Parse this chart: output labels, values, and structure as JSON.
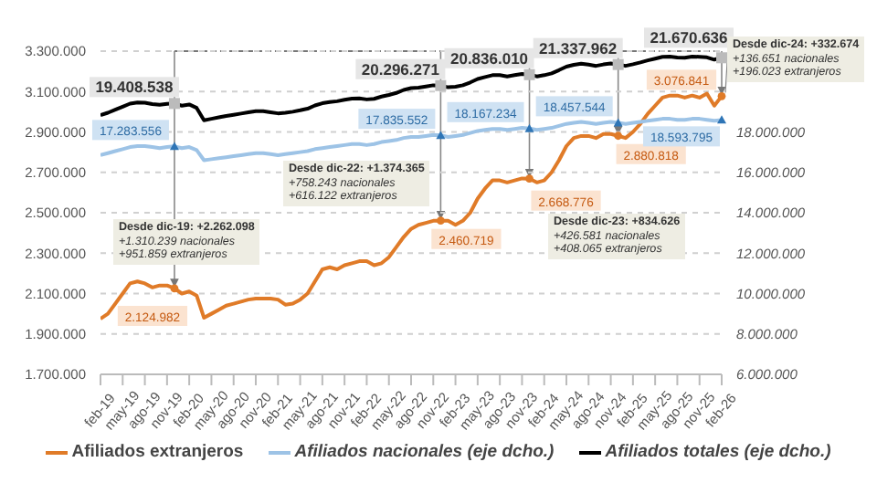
{
  "chart_data": {
    "type": "line",
    "categories": [
      "feb-19",
      null,
      null,
      "may-19",
      null,
      null,
      "ago-19",
      null,
      null,
      "nov-19",
      null,
      null,
      "feb-20",
      null,
      null,
      "may-20",
      null,
      null,
      "ago-20",
      null,
      null,
      "nov-20",
      null,
      null,
      "feb-21",
      null,
      null,
      "may-21",
      null,
      null,
      "ago-21",
      null,
      null,
      "nov-21",
      null,
      null,
      "feb-22",
      null,
      null,
      "may-22",
      null,
      null,
      "ago-22",
      null,
      null,
      "nov-22",
      null,
      null,
      "feb-23",
      null,
      null,
      "may-23",
      null,
      null,
      "ago-23",
      null,
      null,
      "nov-23",
      null,
      null,
      "feb-24",
      null,
      null,
      "may-24",
      null,
      null,
      "ago-24",
      null,
      null,
      "nov-24",
      null,
      null,
      "feb-25",
      null,
      null,
      "may-25",
      null,
      null,
      "ago-25",
      null,
      null,
      "nov-25",
      null,
      null,
      "feb-26"
    ],
    "series": [
      {
        "name": "Afiliados extranjeros",
        "color": "#e07b28",
        "values": [
          1975000,
          2000000,
          2050000,
          2100000,
          2150000,
          2160000,
          2150000,
          2130000,
          2140000,
          2140000,
          2124982,
          2100000,
          2110000,
          2090000,
          1980000,
          2000000,
          2020000,
          2040000,
          2050000,
          2060000,
          2070000,
          2075000,
          2075000,
          2075000,
          2070000,
          2045000,
          2050000,
          2070000,
          2100000,
          2160000,
          2220000,
          2230000,
          2220000,
          2240000,
          2250000,
          2260000,
          2260000,
          2240000,
          2250000,
          2280000,
          2330000,
          2380000,
          2420000,
          2440000,
          2450000,
          2460000,
          2460719,
          2460000,
          2440000,
          2460000,
          2500000,
          2570000,
          2620000,
          2660000,
          2660000,
          2650000,
          2660000,
          2670000,
          2668776,
          2650000,
          2660000,
          2700000,
          2760000,
          2830000,
          2870000,
          2880000,
          2880000,
          2870000,
          2890000,
          2890000,
          2880818,
          2870000,
          2900000,
          2940000,
          2990000,
          3030000,
          3070000,
          3080000,
          3080000,
          3070000,
          3080000,
          3070000,
          3090000,
          3030000,
          3076841
        ],
        "value_labels": [
          null,
          null,
          null,
          null,
          null,
          null,
          null,
          null,
          null,
          null,
          "2.124.982",
          null,
          null,
          null,
          null,
          null,
          null,
          null,
          null,
          null,
          null,
          null,
          null,
          null,
          null,
          null,
          null,
          null,
          null,
          null,
          null,
          null,
          null,
          null,
          null,
          null,
          null,
          null,
          null,
          null,
          null,
          null,
          null,
          null,
          null,
          null,
          "2.460.719",
          null,
          null,
          null,
          null,
          null,
          null,
          null,
          null,
          null,
          null,
          null,
          "2.668.776",
          null,
          null,
          null,
          null,
          null,
          null,
          null,
          null,
          null,
          null,
          null,
          "2.880.818",
          null,
          null,
          null,
          null,
          null,
          null,
          null,
          null,
          null,
          null,
          null,
          null,
          null,
          "3.076.841"
        ]
      },
      {
        "name": "Afiliados nacionales (eje dcho.)",
        "color": "#9dc3e6",
        "axis": "y2",
        "values": [
          16850000,
          16950000,
          17050000,
          17150000,
          17250000,
          17300000,
          17300000,
          17250000,
          17200000,
          17250000,
          17283556,
          17200000,
          17250000,
          17100000,
          16600000,
          16650000,
          16700000,
          16750000,
          16800000,
          16850000,
          16900000,
          16950000,
          16950000,
          16900000,
          16850000,
          16900000,
          16950000,
          17000000,
          17050000,
          17150000,
          17200000,
          17250000,
          17300000,
          17350000,
          17400000,
          17400000,
          17350000,
          17400000,
          17500000,
          17550000,
          17600000,
          17700000,
          17750000,
          17750000,
          17800000,
          17850000,
          17835552,
          17750000,
          17800000,
          17850000,
          17950000,
          18050000,
          18100000,
          18150000,
          18150000,
          18100000,
          18150000,
          18200000,
          18167234,
          18100000,
          18150000,
          18200000,
          18300000,
          18400000,
          18450000,
          18500000,
          18450000,
          18400000,
          18450000,
          18500000,
          18457544,
          18400000,
          18450000,
          18500000,
          18550000,
          18600000,
          18650000,
          18650000,
          18600000,
          18600000,
          18650000,
          18650000,
          18600000,
          18550000,
          18593795
        ],
        "value_labels": [
          null,
          null,
          null,
          null,
          null,
          null,
          null,
          null,
          null,
          null,
          "17.283.556",
          null,
          null,
          null,
          null,
          null,
          null,
          null,
          null,
          null,
          null,
          null,
          null,
          null,
          null,
          null,
          null,
          null,
          null,
          null,
          null,
          null,
          null,
          null,
          null,
          null,
          null,
          null,
          null,
          null,
          null,
          null,
          null,
          null,
          null,
          null,
          "17.835.552",
          null,
          null,
          null,
          null,
          null,
          null,
          null,
          null,
          null,
          null,
          null,
          "18.167.234",
          null,
          null,
          null,
          null,
          null,
          null,
          null,
          null,
          null,
          null,
          null,
          "18.457.544",
          null,
          null,
          null,
          null,
          null,
          null,
          null,
          null,
          null,
          null,
          null,
          null,
          null,
          "18.593.795"
        ]
      },
      {
        "name": "Afiliados totales (eje dcho.)",
        "color": "#000000",
        "axis": "y2",
        "values": [
          18830000,
          18950000,
          19100000,
          19250000,
          19400000,
          19460000,
          19450000,
          19380000,
          19340000,
          19390000,
          19408538,
          19300000,
          19360000,
          19190000,
          18580000,
          18650000,
          18720000,
          18790000,
          18850000,
          18910000,
          18970000,
          19025000,
          19025000,
          18975000,
          18920000,
          18945000,
          19000000,
          19070000,
          19150000,
          19310000,
          19420000,
          19480000,
          19520000,
          19590000,
          19650000,
          19660000,
          19610000,
          19640000,
          19750000,
          19830000,
          19930000,
          20080000,
          20170000,
          20190000,
          20250000,
          20310000,
          20296271,
          20210000,
          20240000,
          20310000,
          20450000,
          20620000,
          20720000,
          20810000,
          20810000,
          20750000,
          20810000,
          20870000,
          20836010,
          20750000,
          20810000,
          20900000,
          21060000,
          21230000,
          21320000,
          21380000,
          21330000,
          21270000,
          21340000,
          21390000,
          21337962,
          21270000,
          21350000,
          21440000,
          21540000,
          21630000,
          21720000,
          21730000,
          21680000,
          21670000,
          21730000,
          21720000,
          21690000,
          21580000,
          21670636
        ],
        "value_labels": [
          null,
          null,
          null,
          null,
          null,
          null,
          null,
          null,
          null,
          null,
          "19.408.538",
          null,
          null,
          null,
          null,
          null,
          null,
          null,
          null,
          null,
          null,
          null,
          null,
          null,
          null,
          null,
          null,
          null,
          null,
          null,
          null,
          null,
          null,
          null,
          null,
          null,
          null,
          null,
          null,
          null,
          null,
          null,
          null,
          null,
          null,
          null,
          "20.296.271",
          null,
          null,
          null,
          null,
          null,
          null,
          null,
          null,
          null,
          null,
          null,
          "20.836.010",
          null,
          null,
          null,
          null,
          null,
          null,
          null,
          null,
          null,
          null,
          null,
          "21.337.962",
          null,
          null,
          null,
          null,
          null,
          null,
          null,
          null,
          null,
          null,
          null,
          null,
          null,
          "21.670.636"
        ]
      }
    ],
    "ylim": [
      1700000,
      3300000
    ],
    "yticks": [
      {
        "value": 1700000,
        "label": "1.700.000"
      },
      {
        "value": 1900000,
        "label": "1.900.000"
      },
      {
        "value": 2100000,
        "label": "2.100.000"
      },
      {
        "value": 2300000,
        "label": "2.300.000"
      },
      {
        "value": 2500000,
        "label": "2.500.000"
      },
      {
        "value": 2700000,
        "label": "2.700.000"
      },
      {
        "value": 2900000,
        "label": "2.900.000"
      },
      {
        "value": 3100000,
        "label": "3.100.000"
      },
      {
        "value": 3300000,
        "label": "3.300.000"
      }
    ],
    "y2lim": [
      6000000,
      22000000
    ],
    "y2ticks": [
      {
        "value": 6000000,
        "label": "6.000.000"
      },
      {
        "value": 8000000,
        "label": "8.000.000"
      },
      {
        "value": 10000000,
        "label": "10.000.000"
      },
      {
        "value": 12000000,
        "label": "12.000.000"
      },
      {
        "value": 14000000,
        "label": "14.000.000"
      },
      {
        "value": 16000000,
        "label": "16.000.000"
      },
      {
        "value": 18000000,
        "label": "18.000.000"
      },
      {
        "value": 20000000,
        "label": null
      },
      {
        "value": 22000000,
        "label": null
      }
    ],
    "annotations": [
      "Desde dic-19: +2.262.098\n+1.310.239 nacionales\n+951.859 extranjeros",
      "Desde dic-22: +1.374.365\n+758.243 nacionales\n+616.122 extranjeros",
      "Desde dic-23: +834.626\n+426.581 nacionales\n+408.065 extranjeros",
      {
        "text": "Desde dic-24: +332.674\n+136.651 nacionales\n+196.023 extranjeros",
        "x": "feb-26",
        "y": 3076841
      }
    ],
    "grid": "y",
    "legend": "bottom"
  }
}
